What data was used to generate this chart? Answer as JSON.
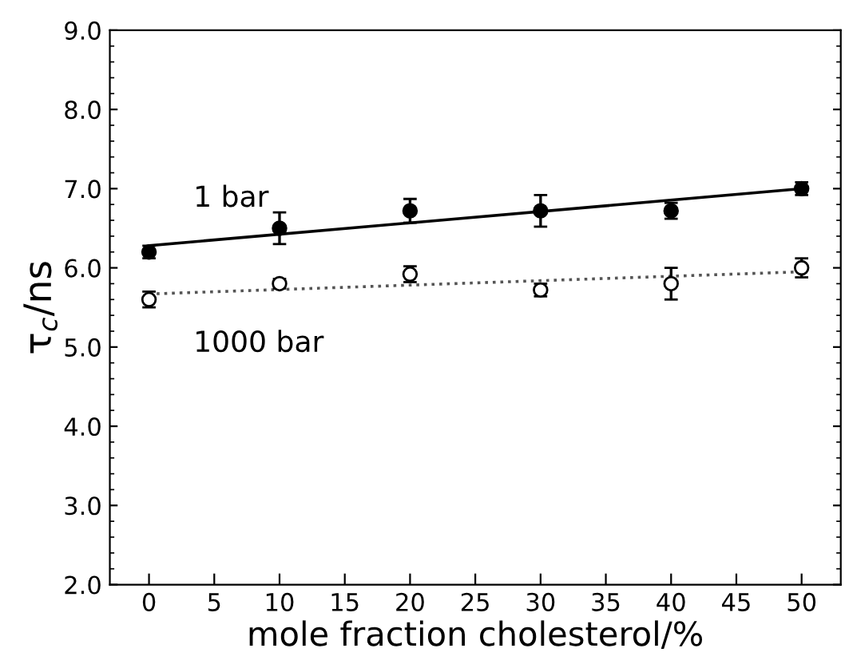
{
  "chart_data": {
    "type": "scatter",
    "xlabel": "mole fraction cholesterol/%",
    "ylabel": "τ$_{c}$/ns",
    "xlim": [
      -3,
      53
    ],
    "xticks": [
      0,
      5,
      10,
      15,
      20,
      25,
      30,
      35,
      40,
      45,
      50
    ],
    "ylim": [
      2,
      9
    ],
    "yticks": [
      {
        "value": 2,
        "label": "2.0"
      },
      {
        "value": 3,
        "label": "3.0"
      },
      {
        "value": 4,
        "label": "4.0"
      },
      {
        "value": 5,
        "label": "5.0"
      },
      {
        "value": 6,
        "label": "6.0"
      },
      {
        "value": 7,
        "label": "7.0"
      },
      {
        "value": 8,
        "label": "8.0"
      },
      {
        "value": 9,
        "label": "9.0"
      }
    ],
    "grid": false,
    "legend": false,
    "marker": "circle",
    "series": [
      {
        "name": "1 bar",
        "color": "#000000",
        "x": [
          0,
          10,
          20,
          30,
          40,
          50
        ],
        "values": [
          6.2,
          6.5,
          6.72,
          6.72,
          6.72,
          7.0
        ],
        "errors": [
          0.08,
          0.2,
          0.15,
          0.2,
          0.1,
          0.08
        ]
      },
      {
        "name": "1000 bar",
        "color": "#000000",
        "x": [
          0,
          10,
          20,
          30,
          40,
          50
        ],
        "values": [
          5.6,
          5.8,
          5.92,
          5.72,
          5.8,
          6.0
        ],
        "errors": [
          0.1,
          0.06,
          0.1,
          0.08,
          0.2,
          0.12
        ]
      },
      {
        "type": "line",
        "color": "#000000",
        "x": [
          0,
          50
        ],
        "values": [
          6.28,
          7.0
        ],
        "line_style": "solid",
        "marker": "none"
      },
      {
        "type": "line",
        "color": "#555555",
        "x": [
          0,
          50
        ],
        "values": [
          5.67,
          5.95
        ],
        "line_style": "dotted",
        "marker": "none"
      }
    ]
  }
}
